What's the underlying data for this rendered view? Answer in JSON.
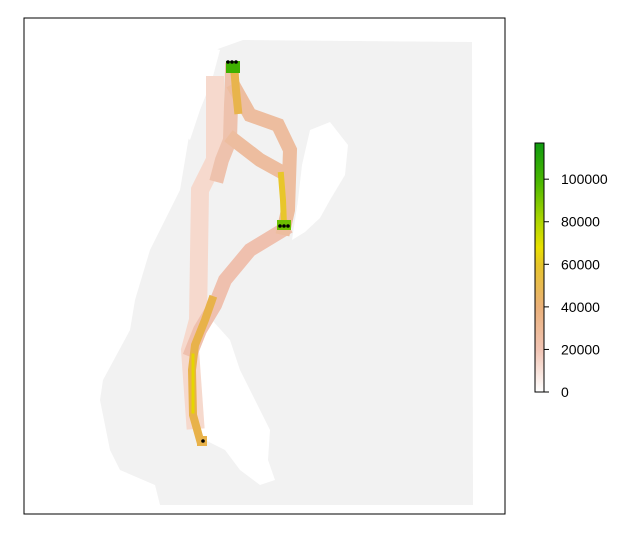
{
  "chart_data": {
    "type": "heatmap",
    "title": "",
    "xlabel": "",
    "ylabel": "",
    "description_scale": "continuous",
    "colorbar": {
      "min": 0,
      "max": 117000,
      "ticks": [
        0,
        20000,
        40000,
        60000,
        80000,
        100000
      ],
      "tick_labels": [
        "0",
        "20000",
        "40000",
        "60000",
        "80000",
        "100000"
      ],
      "colors": [
        "#ffffff",
        "#f1c4b4",
        "#eab07a",
        "#e6c42a",
        "#e8e000",
        "#a6d400",
        "#4cb800",
        "#0f9a0f"
      ]
    },
    "background_color": "#f2f2f2",
    "paths": [
      {
        "id": "north-to-fork-left",
        "value": 30000
      },
      {
        "id": "north-to-east-point",
        "value": 52000
      },
      {
        "id": "diagonal-east-to-south",
        "value": 18000
      },
      {
        "id": "long-left-route",
        "value": 12000
      },
      {
        "id": "south-segment",
        "value": 48000
      }
    ],
    "points": [
      {
        "id": "north-source",
        "value": 110000
      },
      {
        "id": "east-node",
        "value": 95000
      },
      {
        "id": "south-node",
        "value": 55000
      }
    ]
  }
}
